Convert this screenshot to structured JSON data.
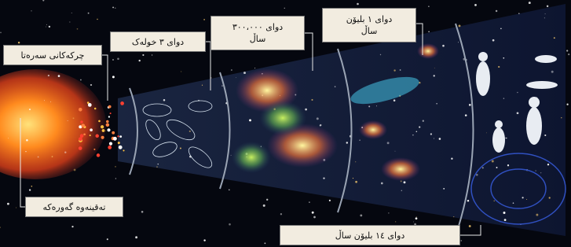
{
  "labels": [
    [
      "چرکەکانی سەرەتا"
    ],
    [
      "دوای ٣ خولەک"
    ],
    [
      "دوای ٣٠٠،٠٠٠",
      "ساڵ"
    ],
    [
      "دوای ١ بلیۆن",
      "ساڵ"
    ],
    [
      "تەقینەوە گەورەکە"
    ],
    [
      "دوای ١٤ بلیۆن ساڵ"
    ]
  ]
}
